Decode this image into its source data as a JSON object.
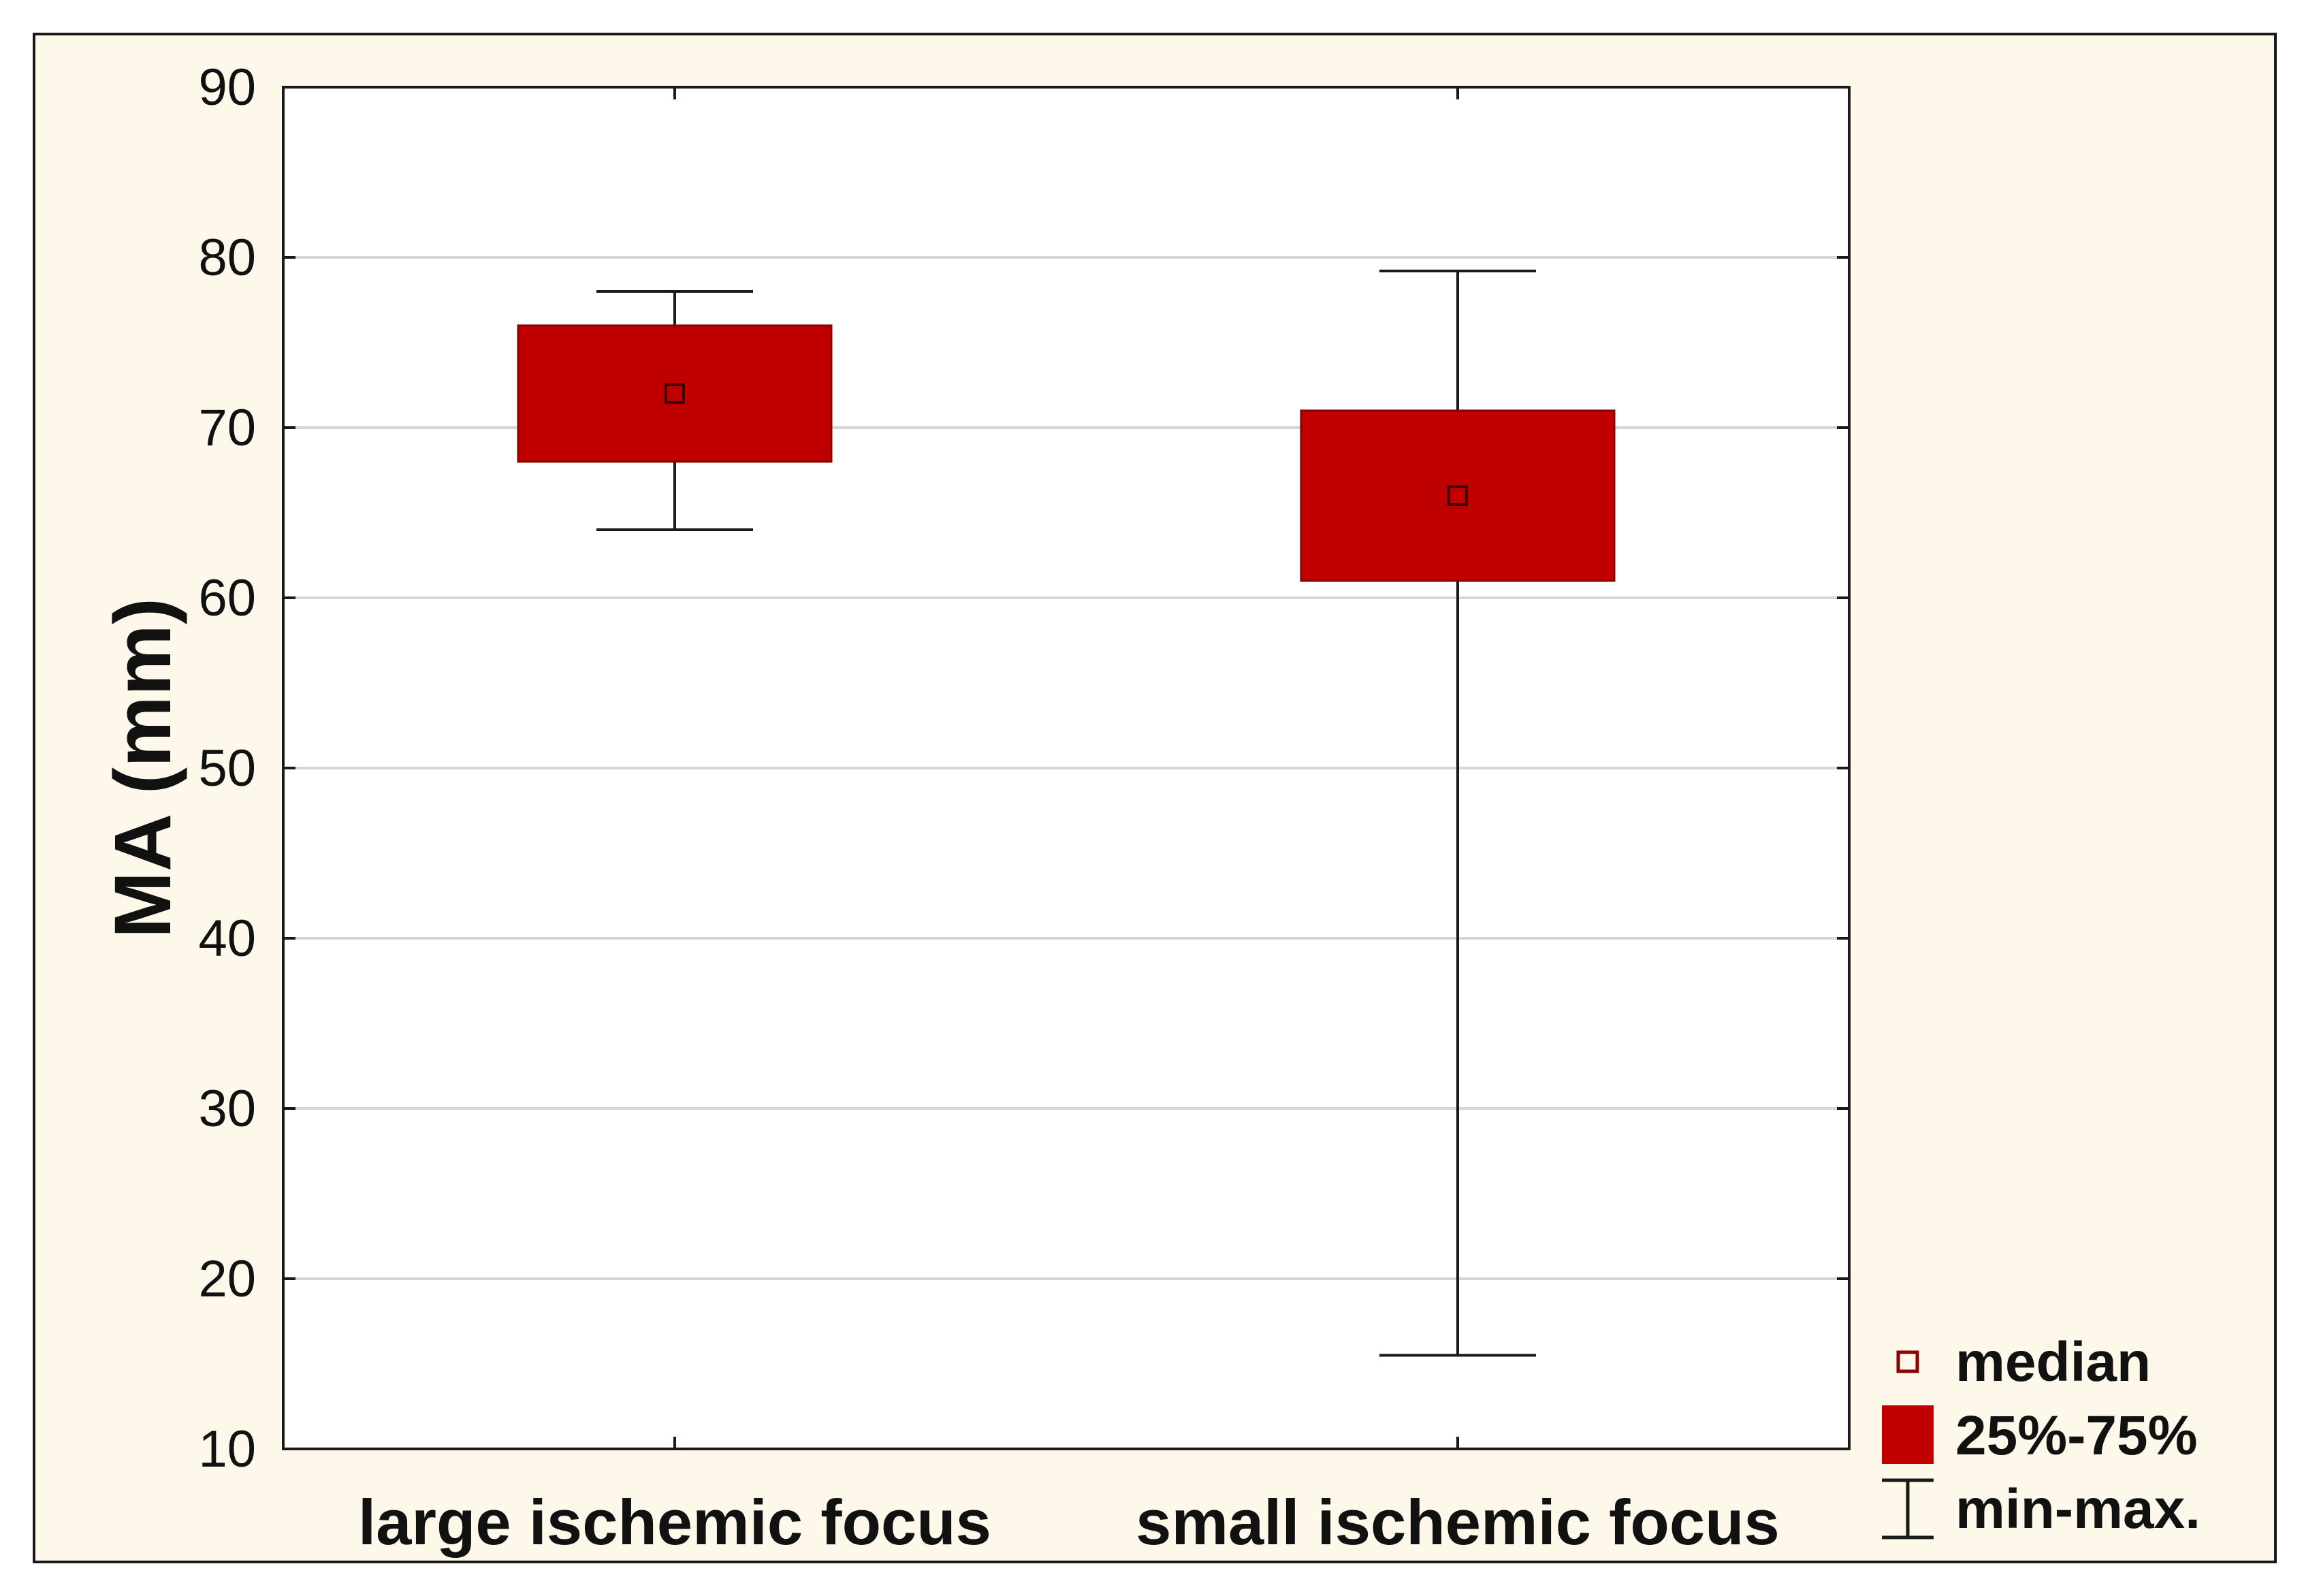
{
  "chart_data": {
    "type": "box",
    "title": "",
    "ylabel": "MA (mm)",
    "xlabel": "",
    "ylim": [
      10,
      90
    ],
    "yticks": [
      "10",
      "20",
      "30",
      "40",
      "50",
      "60",
      "70",
      "80",
      "90"
    ],
    "grid": true,
    "categories": [
      "large ischemic focus",
      "small ischemic focus"
    ],
    "series": [
      {
        "name": "large ischemic focus",
        "min": 64,
        "q1": 68,
        "median": 72,
        "q3": 76,
        "max": 78
      },
      {
        "name": "small ischemic focus",
        "min": 15.5,
        "q1": 61,
        "median": 66,
        "q3": 71,
        "max": 79.2
      }
    ],
    "box_color": "#c00000",
    "median_marker_color": "#8b0000",
    "legend": {
      "position": "bottom-right",
      "items": [
        {
          "symbol": "square-outline",
          "label": "median"
        },
        {
          "symbol": "filled-box",
          "label": "25%-75%"
        },
        {
          "symbol": "whisker",
          "label": "min-max."
        }
      ]
    }
  }
}
